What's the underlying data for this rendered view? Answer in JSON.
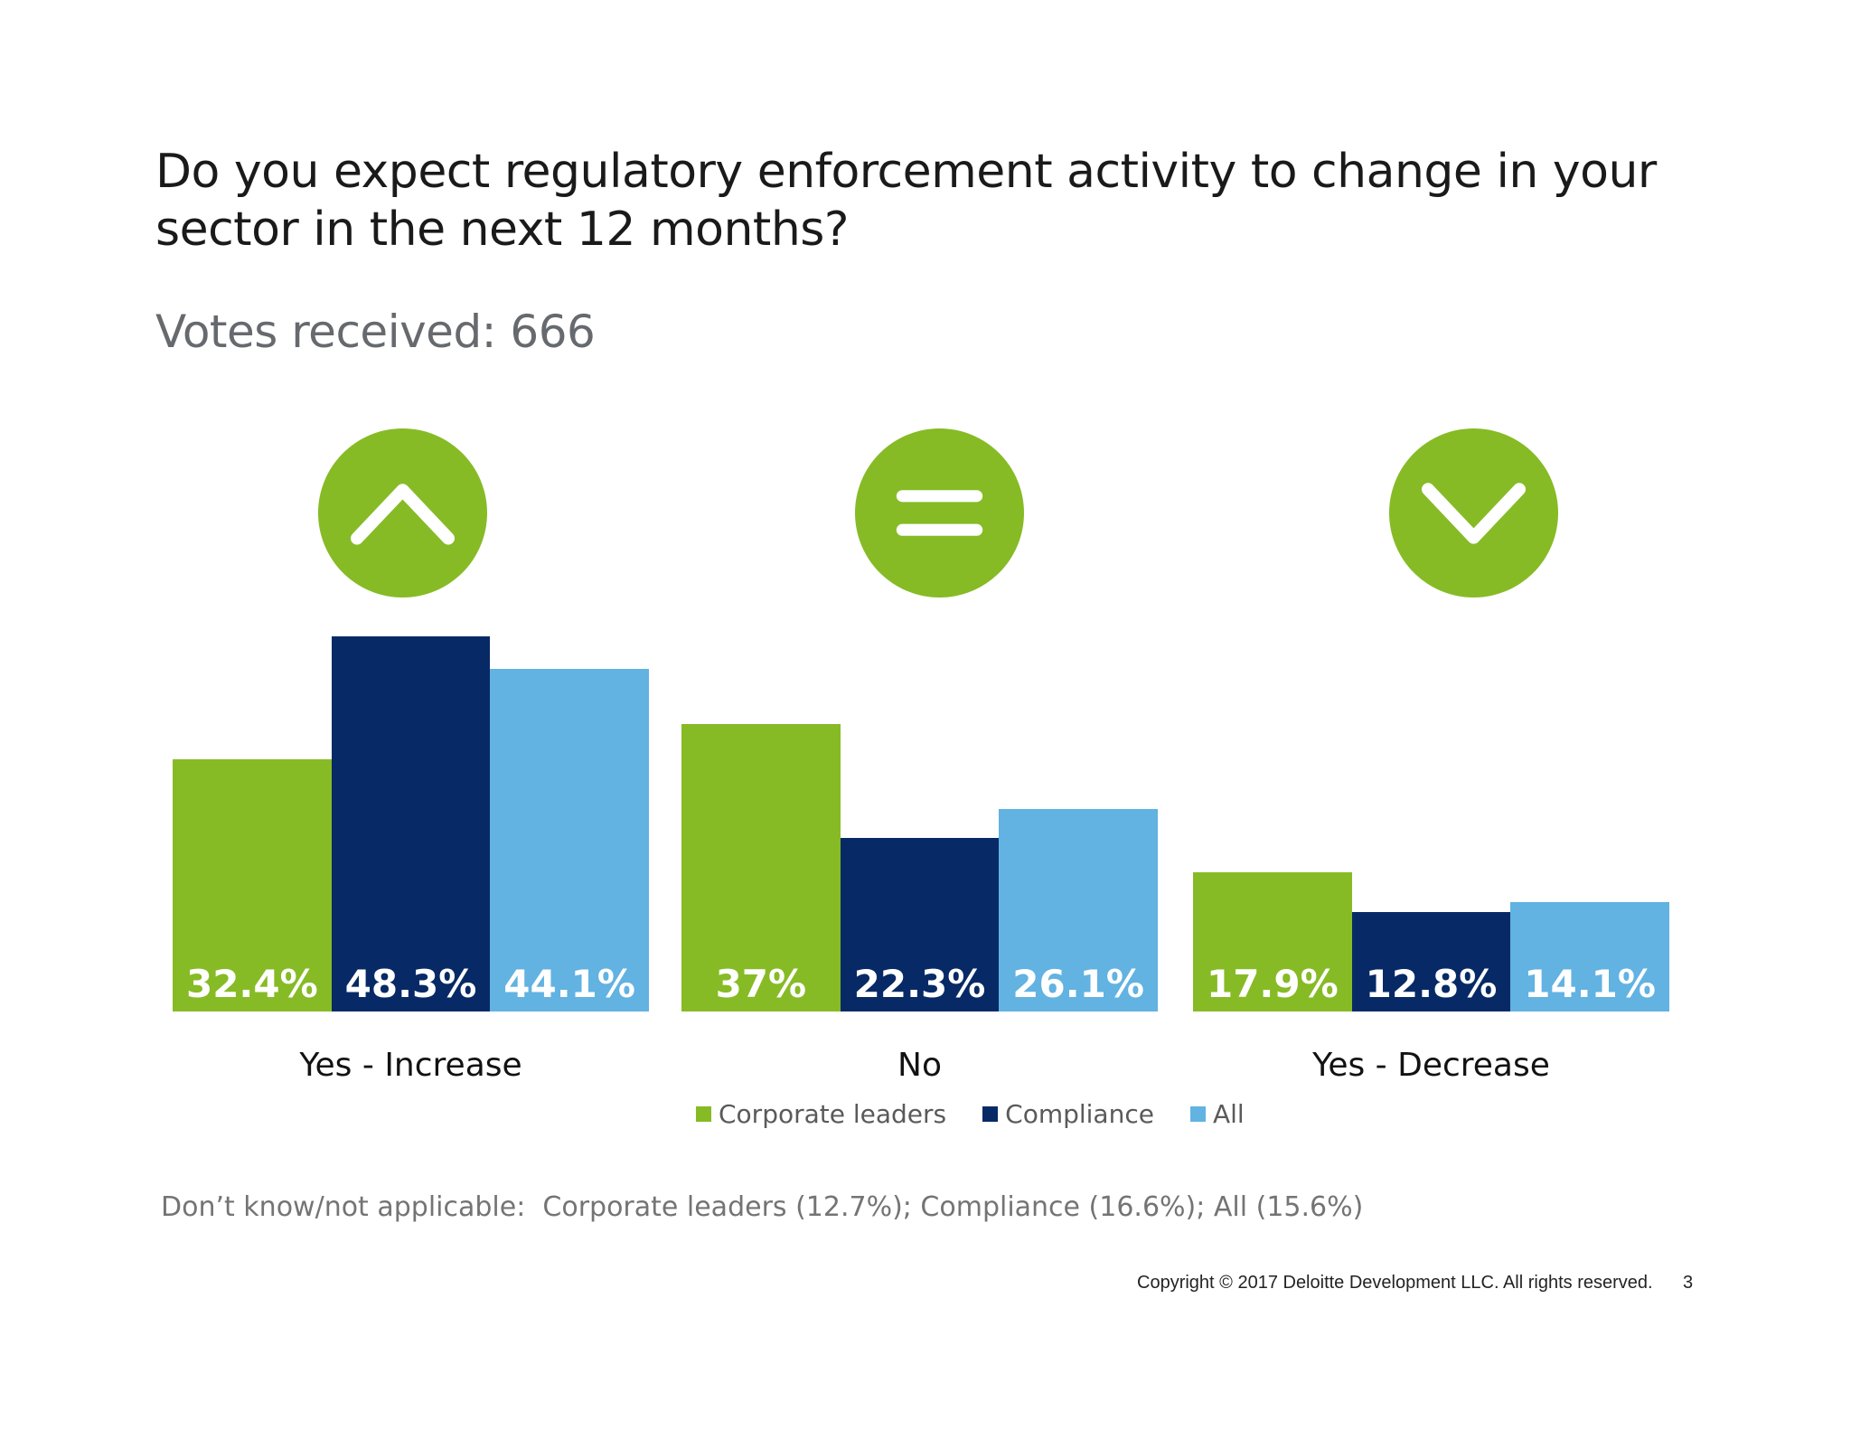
{
  "slide": {
    "title": "Do you expect regulatory enforcement activity to change in your sector in the next 12 months?",
    "votes_label": "Votes received: 666",
    "footnote": "Don’t know/not applicable:  Corporate leaders (12.7%); Compliance (16.6%); All (15.6%)",
    "copyright": "Copyright © 2017 Deloitte Development LLC. All rights reserved.",
    "page_number": "3"
  },
  "icons": [
    {
      "name": "chevron-up-icon",
      "meaning": "increase"
    },
    {
      "name": "equals-icon",
      "meaning": "stay the same"
    },
    {
      "name": "chevron-down-icon",
      "meaning": "decrease"
    }
  ],
  "colors": {
    "icon_green": "#86BB25",
    "green": "#86BB25",
    "navy": "#072A66",
    "light_blue": "#62B2E2"
  },
  "chart_data": {
    "type": "bar",
    "categories": [
      "Yes - Increase",
      "No",
      "Yes - Decrease"
    ],
    "series": [
      {
        "name": "Corporate leaders",
        "color": "#86BB25",
        "values": [
          32.4,
          37,
          17.9
        ],
        "labels": [
          "32.4%",
          "37%",
          "17.9%"
        ]
      },
      {
        "name": "Compliance",
        "color": "#072A66",
        "values": [
          48.3,
          22.3,
          12.8
        ],
        "labels": [
          "48.3%",
          "22.3%",
          "12.8%"
        ]
      },
      {
        "name": "All",
        "color": "#62B2E2",
        "values": [
          44.1,
          26.1,
          14.1
        ],
        "labels": [
          "44.1%",
          "26.1%",
          "14.1%"
        ]
      }
    ],
    "ylim": [
      0,
      50
    ],
    "axes": "hidden",
    "grid": false,
    "legend_position": "bottom",
    "value_labels": "inside-bottom"
  }
}
